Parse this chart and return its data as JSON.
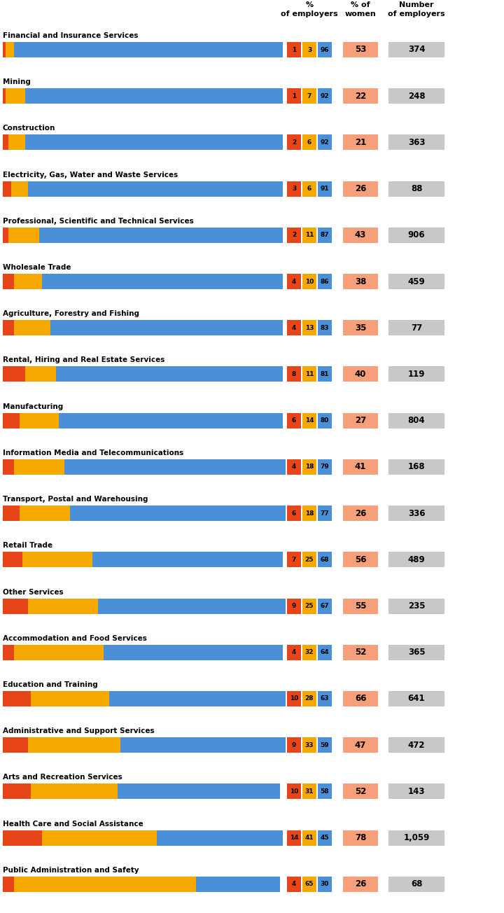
{
  "industries": [
    "Financial and Insurance Services",
    "Mining",
    "Construction",
    "Electricity, Gas, Water and Waste Services",
    "Professional, Scientific and Technical Services",
    "Wholesale Trade",
    "Agriculture, Forestry and Fishing",
    "Rental, Hiring and Real Estate Services",
    "Manufacturing",
    "Information Media and Telecommunications",
    "Transport, Postal and Warehousing",
    "Retail Trade",
    "Other Services",
    "Accommodation and Food Services",
    "Education and Training",
    "Administrative and Support Services",
    "Arts and Recreation Services",
    "Health Care and Social Assistance",
    "Public Administration and Safety"
  ],
  "red_pct": [
    1,
    1,
    2,
    3,
    2,
    4,
    4,
    8,
    6,
    4,
    6,
    7,
    9,
    4,
    10,
    9,
    10,
    14,
    4
  ],
  "yellow_pct": [
    3,
    7,
    6,
    6,
    11,
    10,
    13,
    11,
    14,
    18,
    18,
    25,
    25,
    32,
    28,
    33,
    31,
    41,
    65
  ],
  "blue_pct": [
    96,
    92,
    92,
    91,
    87,
    86,
    83,
    81,
    80,
    79,
    77,
    68,
    67,
    64,
    63,
    59,
    58,
    45,
    30
  ],
  "pct_women": [
    53,
    22,
    21,
    26,
    43,
    38,
    35,
    40,
    27,
    41,
    26,
    56,
    55,
    52,
    66,
    47,
    52,
    78,
    26
  ],
  "num_employers": [
    "374",
    "248",
    "363",
    "88",
    "906",
    "459",
    "77",
    "119",
    "804",
    "168",
    "336",
    "489",
    "235",
    "365",
    "641",
    "472",
    "143",
    "1,059",
    "68"
  ],
  "bar_color_red": "#E8441A",
  "bar_color_yellow": "#F5A800",
  "bar_color_blue": "#4A90D9",
  "women_bg_color": "#F5A07A",
  "num_bg_color": "#C8C8C8",
  "bg_color": "#FFFFFF",
  "header_line1_col1": "%",
  "header_line2_col1": "of employers",
  "header_line1_col2": "% of",
  "header_line2_col2": "women",
  "header_line1_col3": "Number",
  "header_line2_col3": "of employers"
}
